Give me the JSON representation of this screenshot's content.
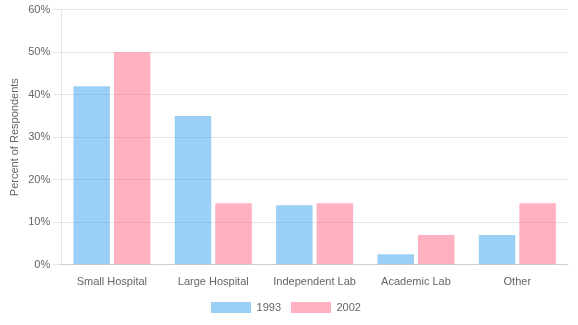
{
  "chart_data": {
    "type": "bar",
    "categories": [
      "Small Hospital",
      "Large Hospital",
      "Independent Lab",
      "Academic Lab",
      "Other"
    ],
    "series": [
      {
        "name": "1993",
        "values": [
          42,
          35,
          14,
          2.5,
          7
        ]
      },
      {
        "name": "2002",
        "values": [
          50,
          14.5,
          14.5,
          7,
          14.5
        ]
      }
    ],
    "ylabel": "Percent of Respondents",
    "ylim": [
      0,
      60
    ],
    "yticks": [
      {
        "value": 0,
        "label": "0%"
      },
      {
        "value": 10,
        "label": "10%"
      },
      {
        "value": 20,
        "label": "20%"
      },
      {
        "value": 30,
        "label": "30%"
      },
      {
        "value": 40,
        "label": "40%"
      },
      {
        "value": 50,
        "label": "50%"
      },
      {
        "value": 60,
        "label": "60%"
      }
    ],
    "grid": true,
    "legend": "bottom"
  }
}
